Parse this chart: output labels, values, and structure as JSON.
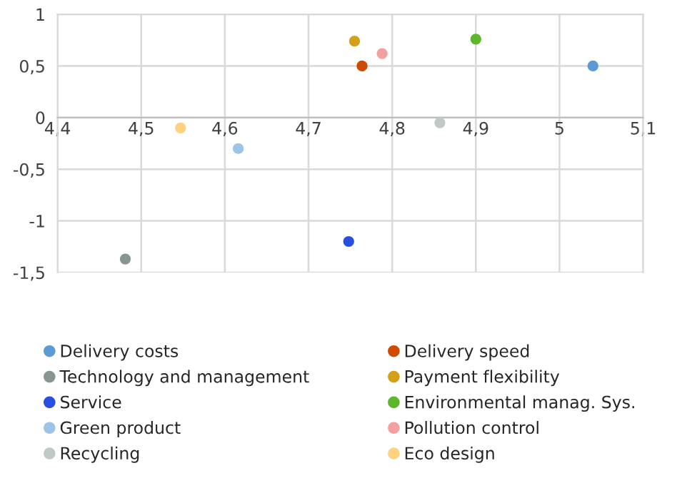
{
  "chart_data": {
    "type": "scatter",
    "marker": "circle",
    "grid": true,
    "legend": "bottom",
    "xlim": [
      4.4,
      5.1
    ],
    "ylim": [
      -1.5,
      1
    ],
    "xticks": [
      {
        "value": 4.4,
        "label": "4,4"
      },
      {
        "value": 4.5,
        "label": "4,5"
      },
      {
        "value": 4.6,
        "label": "4,6"
      },
      {
        "value": 4.7,
        "label": "4,7"
      },
      {
        "value": 4.8,
        "label": "4,8"
      },
      {
        "value": 4.9,
        "label": "4,9"
      },
      {
        "value": 5,
        "label": "5"
      },
      {
        "value": 5.1,
        "label": "5,1"
      }
    ],
    "yticks": [
      {
        "value": -1.5,
        "label": "-1,5"
      },
      {
        "value": -1,
        "label": "-1"
      },
      {
        "value": -0.5,
        "label": "-0,5"
      },
      {
        "value": 0,
        "label": "0"
      },
      {
        "value": 0.5,
        "label": "0,5"
      },
      {
        "value": 1,
        "label": "1"
      }
    ],
    "series": [
      {
        "name": "Delivery costs",
        "color": "#5b9bd5",
        "x": [
          5.04
        ],
        "values": [
          0.5
        ]
      },
      {
        "name": "Delivery speed",
        "color": "#d04a02",
        "x": [
          4.764
        ],
        "values": [
          0.5
        ]
      },
      {
        "name": "Technology and management",
        "color": "#879593",
        "x": [
          4.481
        ],
        "values": [
          -1.37
        ]
      },
      {
        "name": "Payment flexibility",
        "color": "#d4a017",
        "x": [
          4.755
        ],
        "values": [
          0.74
        ]
      },
      {
        "name": "Service",
        "color": "#2850e0",
        "x": [
          4.748
        ],
        "values": [
          -1.2
        ]
      },
      {
        "name": "Environmental manag. Sys.",
        "color": "#5cb82a",
        "x": [
          4.9
        ],
        "values": [
          0.76
        ]
      },
      {
        "name": "Green product",
        "color": "#9dc3e6",
        "x": [
          4.616
        ],
        "values": [
          -0.3
        ]
      },
      {
        "name": "Pollution control",
        "color": "#f4a0a0",
        "x": [
          4.788
        ],
        "values": [
          0.62
        ]
      },
      {
        "name": "Recycling",
        "color": "#c0c8c8",
        "x": [
          4.857
        ],
        "values": [
          -0.05
        ]
      },
      {
        "name": "Eco design",
        "color": "#ffd27f",
        "x": [
          4.547
        ],
        "values": [
          -0.1
        ]
      }
    ]
  }
}
